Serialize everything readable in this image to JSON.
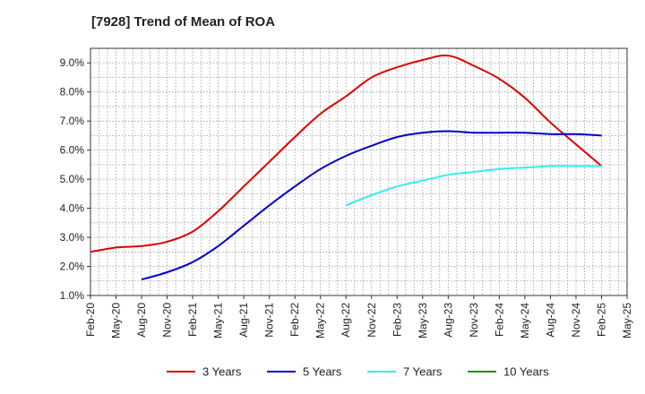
{
  "chart_data": {
    "type": "line",
    "title": "[7928]  Trend of Mean of ROA",
    "xlabel": "",
    "ylabel": "",
    "x": [
      "Feb-20",
      "May-20",
      "Aug-20",
      "Nov-20",
      "Feb-21",
      "May-21",
      "Aug-21",
      "Nov-21",
      "Feb-22",
      "May-22",
      "Aug-22",
      "Nov-22",
      "Feb-23",
      "May-23",
      "Aug-23",
      "Nov-23",
      "Feb-24",
      "May-24",
      "Aug-24",
      "Nov-24",
      "Feb-25",
      "May-25"
    ],
    "ylim": [
      1.0,
      9.5
    ],
    "yticks": [
      "1.0%",
      "2.0%",
      "3.0%",
      "4.0%",
      "5.0%",
      "6.0%",
      "7.0%",
      "8.0%",
      "9.0%"
    ],
    "grid": true,
    "legend_position": "bottom",
    "series": [
      {
        "name": "3 Years",
        "color": "#dd0000",
        "values": [
          2.5,
          2.65,
          2.7,
          2.85,
          3.2,
          3.9,
          4.75,
          5.6,
          6.45,
          7.25,
          7.85,
          8.5,
          8.85,
          9.1,
          9.25,
          8.9,
          8.45,
          7.8,
          6.95,
          6.2,
          5.45,
          null
        ]
      },
      {
        "name": "5 Years",
        "color": "#0000cc",
        "values": [
          null,
          null,
          1.55,
          1.8,
          2.15,
          2.7,
          3.4,
          4.1,
          4.75,
          5.35,
          5.8,
          6.15,
          6.45,
          6.6,
          6.65,
          6.6,
          6.6,
          6.6,
          6.55,
          6.55,
          6.5,
          null
        ]
      },
      {
        "name": "7 Years",
        "color": "#33eeee",
        "values": [
          null,
          null,
          null,
          null,
          null,
          null,
          null,
          null,
          null,
          null,
          4.1,
          4.45,
          4.75,
          4.95,
          5.15,
          5.25,
          5.35,
          5.4,
          5.45,
          5.45,
          5.45,
          null
        ]
      },
      {
        "name": "10 Years",
        "color": "#228b22",
        "values": [
          null,
          null,
          null,
          null,
          null,
          null,
          null,
          null,
          null,
          null,
          null,
          null,
          null,
          null,
          null,
          null,
          null,
          null,
          null,
          null,
          null,
          null
        ]
      }
    ]
  }
}
